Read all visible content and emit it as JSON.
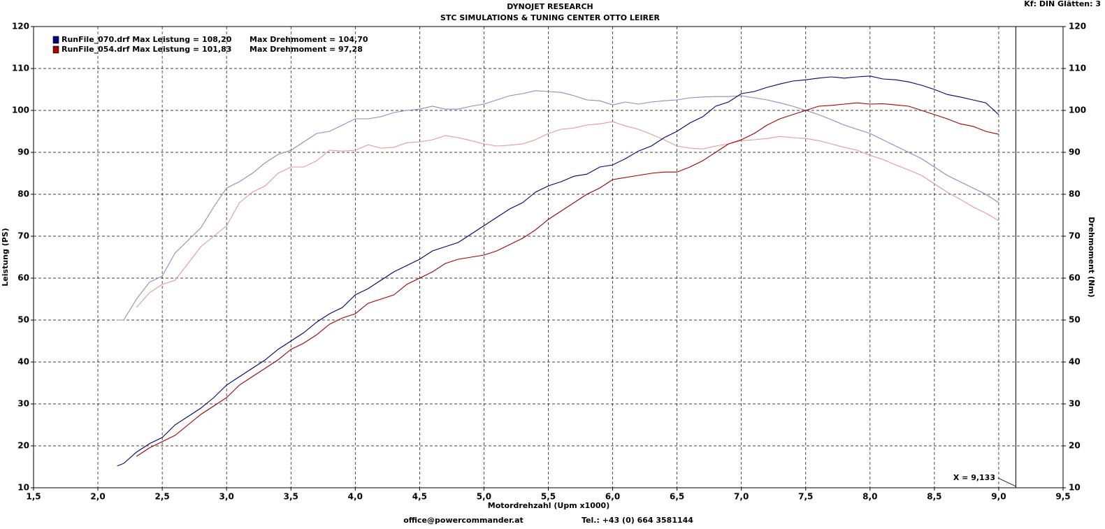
{
  "chart_data": {
    "type": "line",
    "title": "DYNOJET RESEARCH",
    "subtitle": "STC SIMULATIONS & TUNING CENTER OTTO LEIRER",
    "settings_label": "Kf: DIN  Glätten: 3",
    "x_label": "Motordrehzahl (Upm x1000)",
    "y_label": "Leistung (PS)",
    "y2_label": "Drehmoment (Nm)",
    "footer_left": "office@powercommander.at",
    "footer_right": "Tel.: +43 (0) 664 3581144",
    "cursor": {
      "value": 9.133,
      "label": "X = 9,133"
    },
    "grid": true,
    "xlim": [
      1.5,
      9.5
    ],
    "xticks": [
      {
        "value": 1.5,
        "label": "1,5"
      },
      {
        "value": 2,
        "label": "2,0"
      },
      {
        "value": 2.5,
        "label": "2,5"
      },
      {
        "value": 3,
        "label": "3,0"
      },
      {
        "value": 3.5,
        "label": "3,5"
      },
      {
        "value": 4,
        "label": "4,0"
      },
      {
        "value": 4.5,
        "label": "4,5"
      },
      {
        "value": 5,
        "label": "5,0"
      },
      {
        "value": 5.5,
        "label": "5,5"
      },
      {
        "value": 6,
        "label": "6,0"
      },
      {
        "value": 6.5,
        "label": "6,5"
      },
      {
        "value": 7,
        "label": "7,0"
      },
      {
        "value": 7.5,
        "label": "7,5"
      },
      {
        "value": 8,
        "label": "8,0"
      },
      {
        "value": 8.5,
        "label": "8,5"
      },
      {
        "value": 9,
        "label": "9,0"
      },
      {
        "value": 9.5,
        "label": "9,5"
      }
    ],
    "ylim": [
      10,
      120
    ],
    "yticks": [
      10,
      20,
      30,
      40,
      50,
      60,
      70,
      80,
      90,
      100,
      110,
      120
    ],
    "y2lim": [
      10,
      120
    ],
    "y2ticks": [
      10,
      20,
      30,
      40,
      50,
      60,
      70,
      80,
      90,
      100,
      110,
      120
    ],
    "x": [
      2.15,
      2.2,
      2.3,
      2.4,
      2.5,
      2.6,
      2.7,
      2.8,
      2.9,
      3.0,
      3.1,
      3.2,
      3.3,
      3.4,
      3.5,
      3.6,
      3.7,
      3.8,
      3.9,
      4.0,
      4.1,
      4.2,
      4.3,
      4.4,
      4.5,
      4.6,
      4.7,
      4.8,
      4.9,
      5.0,
      5.1,
      5.2,
      5.3,
      5.4,
      5.5,
      5.6,
      5.7,
      5.8,
      5.9,
      6.0,
      6.1,
      6.2,
      6.3,
      6.4,
      6.5,
      6.6,
      6.7,
      6.8,
      6.9,
      7.0,
      7.1,
      7.2,
      7.3,
      7.4,
      7.5,
      7.6,
      7.7,
      7.8,
      7.9,
      8.0,
      8.1,
      8.2,
      8.3,
      8.4,
      8.5,
      8.6,
      8.7,
      8.8,
      8.9,
      9.0
    ],
    "series": [
      {
        "name": "RunFile_070.drf Max Leistung = 108,20",
        "color": "#00007a",
        "values": [
          15.2,
          15.8,
          18.5,
          20.5,
          22,
          25,
          27,
          29,
          31.5,
          34.5,
          36.5,
          38.5,
          40.5,
          43,
          45,
          47,
          49.5,
          51.5,
          53,
          56,
          57.5,
          59.5,
          61.5,
          63,
          64.5,
          66.5,
          67.5,
          68.5,
          70.5,
          72.5,
          74.5,
          76.5,
          78,
          80.5,
          82,
          83,
          84.3,
          84.8,
          86.5,
          87,
          88.5,
          90.3,
          91.5,
          93.5,
          95,
          97,
          98.5,
          101,
          102,
          104,
          104.5,
          105.5,
          106.3,
          107,
          107.3,
          107.7,
          108,
          107.7,
          108,
          108.2,
          107.5,
          107.3,
          106.8,
          106,
          105,
          103.8,
          103.2,
          102.5,
          101.8,
          99
        ]
      },
      {
        "name": "RunFile_054.drf Max Leistung = 101,83",
        "color": "#a00000",
        "values": [
          null,
          null,
          17.5,
          19.5,
          21,
          22.5,
          25,
          27.5,
          29.5,
          31.5,
          34.5,
          36.5,
          38.5,
          40.5,
          43,
          44.5,
          46.5,
          49,
          50.5,
          51.5,
          54,
          55,
          56,
          58.5,
          60,
          61.5,
          63.5,
          64.5,
          65,
          65.5,
          66.5,
          68,
          69.5,
          71.5,
          74,
          76,
          78,
          80,
          81.5,
          83.5,
          84,
          84.5,
          85,
          85.3,
          85.3,
          86.5,
          88,
          90,
          92,
          93,
          94.5,
          96.5,
          98,
          99,
          100,
          101,
          101.2,
          101.5,
          101.8,
          101.5,
          101.6,
          101.3,
          101,
          100,
          99,
          98,
          96.8,
          96.2,
          95,
          94.3
        ]
      },
      {
        "name": "Max Drehmoment = 104,70",
        "color": "#8a8ac4",
        "axis": "y2",
        "values": [
          50,
          50,
          55,
          59,
          60.5,
          66,
          69,
          72,
          77,
          81.5,
          83,
          85,
          87.5,
          89.5,
          90.5,
          92.5,
          94.5,
          95,
          96.5,
          98,
          98,
          98.5,
          99.5,
          100,
          100.3,
          101,
          100.3,
          100.3,
          101,
          101.5,
          102.5,
          103.5,
          104,
          104.7,
          104.5,
          104.3,
          103.5,
          102.5,
          102.3,
          101.3,
          102,
          101.5,
          102,
          102.3,
          102.5,
          103,
          103.2,
          103.3,
          103.3,
          103.5,
          103,
          102.5,
          101.8,
          101,
          100,
          99,
          97.8,
          96.5,
          95.5,
          94.5,
          93,
          91.5,
          90,
          88.5,
          86.5,
          84.5,
          83,
          81.5,
          80,
          78
        ]
      },
      {
        "name": "Max Drehmoment = 97,28",
        "color": "#e09a9a",
        "axis": "y2",
        "values": [
          null,
          null,
          53,
          56.5,
          58.5,
          59.5,
          63.5,
          67.5,
          70,
          72.5,
          78,
          80.5,
          82,
          85,
          86.5,
          86.5,
          88,
          90.5,
          90.3,
          90.5,
          91.8,
          91,
          91.2,
          92.3,
          92.5,
          93,
          94,
          93.5,
          92.8,
          92,
          91.5,
          91.7,
          92,
          93,
          94.5,
          95.5,
          95.8,
          96.5,
          96.8,
          97.3,
          96.3,
          95.5,
          94.3,
          93,
          91.5,
          91,
          90.8,
          91.5,
          92,
          92.8,
          93,
          93.3,
          93.8,
          93.5,
          93.3,
          92.8,
          92,
          91.2,
          90.5,
          89.3,
          88.3,
          87,
          85.8,
          84.5,
          82.5,
          80.5,
          78.8,
          77,
          75.5,
          73.7
        ]
      }
    ]
  }
}
